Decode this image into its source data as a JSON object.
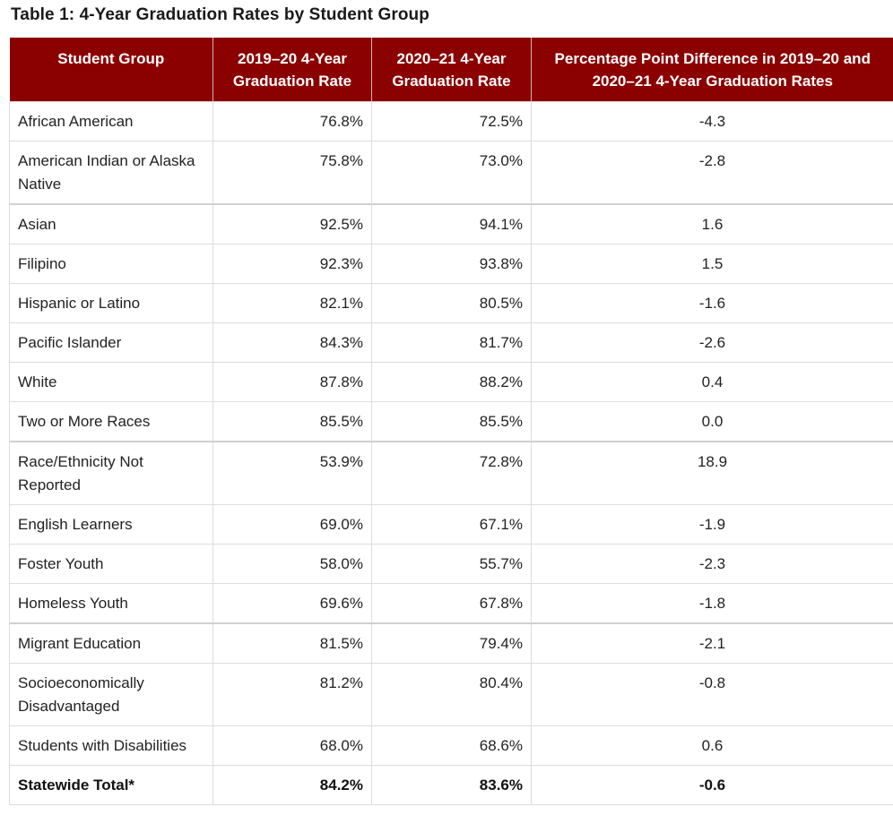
{
  "caption": "Table 1: 4-Year Graduation Rates by Student Group",
  "header": {
    "col1": "Student Group",
    "col2": "2019–20 4-Year Graduation Rate",
    "col3": "2020–21 4-Year Graduation Rate",
    "col4": "Percentage Point Difference in 2019–20 and 2020–21 4-Year Graduation Rates"
  },
  "rows": [
    {
      "group": "African American",
      "rate_2019_20": "76.8%",
      "rate_2020_21": "72.5%",
      "difference": "-4.3"
    },
    {
      "group": "American Indian or Alaska Native",
      "rate_2019_20": "75.8%",
      "rate_2020_21": "73.0%",
      "difference": "-2.8"
    },
    {
      "group": "Asian",
      "rate_2019_20": "92.5%",
      "rate_2020_21": "94.1%",
      "difference": "1.6"
    },
    {
      "group": "Filipino",
      "rate_2019_20": "92.3%",
      "rate_2020_21": "93.8%",
      "difference": "1.5"
    },
    {
      "group": "Hispanic or Latino",
      "rate_2019_20": "82.1%",
      "rate_2020_21": "80.5%",
      "difference": "-1.6"
    },
    {
      "group": "Pacific Islander",
      "rate_2019_20": "84.3%",
      "rate_2020_21": "81.7%",
      "difference": "-2.6"
    },
    {
      "group": "White",
      "rate_2019_20": "87.8%",
      "rate_2020_21": "88.2%",
      "difference": "0.4"
    },
    {
      "group": "Two or More Races",
      "rate_2019_20": "85.5%",
      "rate_2020_21": "85.5%",
      "difference": "0.0"
    },
    {
      "group": "Race/Ethnicity Not Reported",
      "rate_2019_20": "53.9%",
      "rate_2020_21": "72.8%",
      "difference": "18.9"
    },
    {
      "group": "English Learners",
      "rate_2019_20": "69.0%",
      "rate_2020_21": "67.1%",
      "difference": "-1.9"
    },
    {
      "group": "Foster Youth",
      "rate_2019_20": "58.0%",
      "rate_2020_21": "55.7%",
      "difference": "-2.3"
    },
    {
      "group": "Homeless Youth",
      "rate_2019_20": "69.6%",
      "rate_2020_21": "67.8%",
      "difference": "-1.8"
    },
    {
      "group": "Migrant Education",
      "rate_2019_20": "81.5%",
      "rate_2020_21": "79.4%",
      "difference": "-2.1"
    },
    {
      "group": "Socioeconomically Disadvantaged",
      "rate_2019_20": "81.2%",
      "rate_2020_21": "80.4%",
      "difference": "-0.8"
    },
    {
      "group": "Students with Disabilities",
      "rate_2019_20": "68.0%",
      "rate_2020_21": "68.6%",
      "difference": "0.6"
    },
    {
      "group": "Statewide Total*",
      "rate_2019_20": "84.2%",
      "rate_2020_21": "83.6%",
      "difference": "-0.6"
    }
  ],
  "colors": {
    "header_background": "#8b0000",
    "header_text": "#ffffff",
    "border": "#dddddd"
  }
}
